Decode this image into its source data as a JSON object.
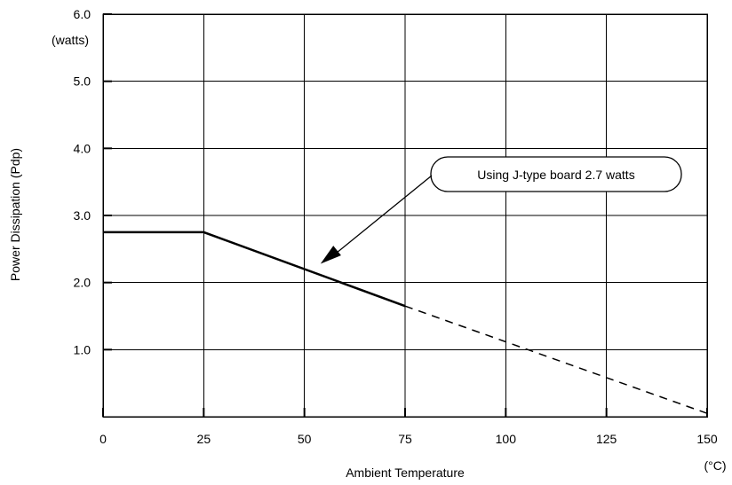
{
  "chart_data": {
    "type": "line",
    "xlabel": "Ambient Temperature",
    "x_unit": "(°C)",
    "ylabel": "Power Dissipation (Pdp)",
    "y_unit": "(watts)",
    "xlim": [
      0,
      150
    ],
    "ylim": [
      0,
      6.0
    ],
    "x_ticks": [
      0,
      25,
      50,
      75,
      100,
      125,
      150
    ],
    "x_tick_labels": [
      "0",
      "25",
      "50",
      "75",
      "100",
      "125",
      "150"
    ],
    "y_ticks": [
      1.0,
      2.0,
      3.0,
      4.0,
      5.0,
      6.0
    ],
    "y_tick_labels": [
      "1.0",
      "2.0",
      "3.0",
      "4.0",
      "5.0",
      "6.0"
    ],
    "grid": true,
    "series": [
      {
        "style": "solid",
        "x": [
          0,
          25,
          75
        ],
        "y": [
          2.75,
          2.75,
          1.65
        ]
      },
      {
        "style": "dashed",
        "x": [
          75,
          150
        ],
        "y": [
          1.65,
          0.05
        ]
      }
    ],
    "annotations": [
      {
        "text": "Using J-type board 2.7 watts",
        "arrow_to": {
          "x": 54,
          "y": 2.28
        }
      }
    ]
  }
}
